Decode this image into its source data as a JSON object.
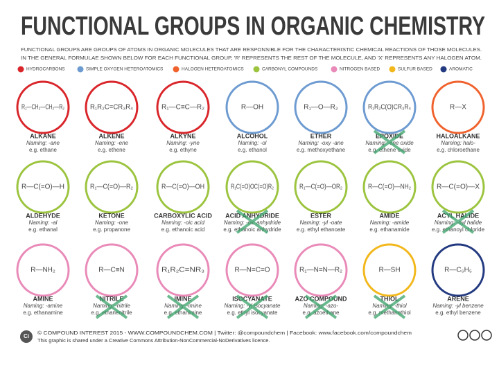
{
  "header": {
    "title": "FUNCTIONAL GROUPS IN ORGANIC CHEMISTRY",
    "subtitle": [
      "FUNCTIONAL GROUPS ARE GROUPS OF ATOMS IN ORGANIC MOLECULES THAT ARE RESPONSIBLE FOR THE CHARACTERISTIC CHEMICAL REACTIONS OF THOSE MOLECULES.",
      "IN THE GENERAL FORMULAE SHOWN BELOW FOR EACH FUNCTIONAL GROUP, 'R' REPRESENTS THE REST OF THE MOLECULE, AND 'X' REPRESENTS ANY HALOGEN ATOM."
    ]
  },
  "legend": [
    {
      "label": "HYDROCARBONS",
      "color": "#d9262b"
    },
    {
      "label": "SIMPLE OXYGEN HETEROATOMICS",
      "color": "#6d9bd1"
    },
    {
      "label": "HALOGEN HETEROATOMICS",
      "color": "#f0622d"
    },
    {
      "label": "CARBONYL COMPOUNDS",
      "color": "#9cc43f"
    },
    {
      "label": "NITROGEN BASED",
      "color": "#e98ab8"
    },
    {
      "label": "SULFUR BASED",
      "color": "#f2b71b"
    },
    {
      "label": "AROMATIC",
      "color": "#233a80"
    }
  ],
  "cards": [
    {
      "name": "ALKANE",
      "formula": "R₁—CH₂—CH₂—R₂",
      "naming": "Naming: -ane",
      "example": "e.g. ethane",
      "color": "#d9262b"
    },
    {
      "name": "ALKENE",
      "formula": "R₁R₂C=CR₃R₄",
      "naming": "Naming: -ene",
      "example": "e.g. ethene",
      "color": "#d9262b"
    },
    {
      "name": "ALKYNE",
      "formula": "R₁—C≡C—R₂",
      "naming": "Naming: -yne",
      "example": "e.g. ethyne",
      "color": "#d9262b"
    },
    {
      "name": "ALCOHOL",
      "formula": "R—OH",
      "naming": "Naming: -ol",
      "example": "e.g. ethanol",
      "color": "#6d9bd1"
    },
    {
      "name": "ETHER",
      "formula": "R₁—O—R₂",
      "naming": "Naming: -oxy -ane",
      "example": "e.g. methoxyethane",
      "color": "#6d9bd1"
    },
    {
      "name": "EPOXIDE",
      "formula": "R₁R₂C(O)CR₃R₄",
      "naming": "Naming: -ene oxide",
      "example": "e.g. ethene oxide",
      "color": "#6d9bd1"
    },
    {
      "name": "HALOALKANE",
      "formula": "R—X",
      "naming": "Naming: halo-",
      "example": "e.g. chloroethane",
      "color": "#f0622d"
    },
    {
      "name": "ALDEHYDE",
      "formula": "R—C(=O)—H",
      "naming": "Naming: -al",
      "example": "e.g. ethanal",
      "color": "#9cc43f"
    },
    {
      "name": "KETONE",
      "formula": "R₁—C(=O)—R₂",
      "naming": "Naming: -one",
      "example": "e.g. propanone",
      "color": "#9cc43f"
    },
    {
      "name": "CARBOXYLIC ACID",
      "formula": "R—C(=O)—OH",
      "naming": "Naming: -oic acid",
      "example": "e.g. ethanoic acid",
      "color": "#9cc43f"
    },
    {
      "name": "ACID ANHYDRIDE",
      "formula": "R₁C(=O)OC(=O)R₂",
      "naming": "Naming: -oic anhydride",
      "example": "e.g. ethanoic anhydride",
      "color": "#9cc43f"
    },
    {
      "name": "ESTER",
      "formula": "R₁—C(=O)—OR₂",
      "naming": "Naming: -yl -oate",
      "example": "e.g. ethyl ethanoate",
      "color": "#9cc43f"
    },
    {
      "name": "AMIDE",
      "formula": "R—C(=O)—NH₂",
      "naming": "Naming: -amide",
      "example": "e.g. ethanamide",
      "color": "#9cc43f"
    },
    {
      "name": "ACYL HALIDE",
      "formula": "R—C(=O)—X",
      "naming": "Naming: -oyl halide",
      "example": "e.g. ethanoyl chloride",
      "color": "#9cc43f"
    },
    {
      "name": "AMINE",
      "formula": "R—NH₂",
      "naming": "Naming: -amine",
      "example": "e.g. ethanamine",
      "color": "#e98ab8"
    },
    {
      "name": "NITRILE",
      "formula": "R—C≡N",
      "naming": "Naming: -nitrile",
      "example": "e.g. ethanenitrile",
      "color": "#e98ab8"
    },
    {
      "name": "IMINE",
      "formula": "R₁R₂C=NR₃",
      "naming": "Naming: -imine",
      "example": "e.g. ethanimine",
      "color": "#e98ab8"
    },
    {
      "name": "ISOCYANATE",
      "formula": "R—N=C=O",
      "naming": "Naming: -yl isocyanate",
      "example": "e.g. ethyl isocyanate",
      "color": "#e98ab8"
    },
    {
      "name": "AZO COMPOUND",
      "formula": "R₁—N=N—R₂",
      "naming": "Naming: -azo-",
      "example": "e.g. azoethane",
      "color": "#e98ab8"
    },
    {
      "name": "THIOL",
      "formula": "R—SH",
      "naming": "Naming: -thiol",
      "example": "e.g. methanethiol",
      "color": "#f2b71b"
    },
    {
      "name": "ARENE",
      "formula": "R—C₆H₅",
      "naming": "Naming: -yl benzene",
      "example": "e.g. ethyl benzene",
      "color": "#233a80"
    }
  ],
  "footer": {
    "logo": "Ci",
    "lines": [
      "© COMPOUND INTEREST 2015 - WWW.COMPOUNDCHEM.COM | Twitter: @compoundchem | Facebook: www.facebook.com/compoundchem",
      "This graphic is shared under a Creative Commons Attribution-NonCommercial-NoDerivatives licence."
    ]
  }
}
